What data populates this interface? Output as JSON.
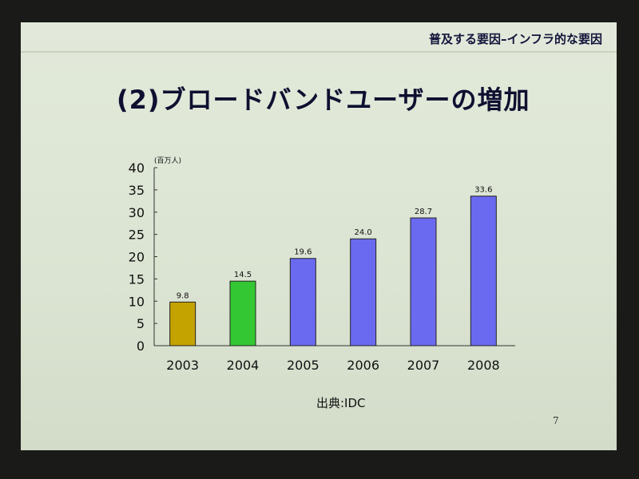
{
  "header": {
    "text": "普及する要因–インフラ的な要因"
  },
  "title": "(2)ブロードバンドユーザーの増加",
  "source": "出典:IDC",
  "page_number": "7",
  "chart_data": {
    "type": "bar",
    "title": "",
    "ylabel": "(百万人)",
    "xlabel": "",
    "categories": [
      "2003",
      "2004",
      "2005",
      "2006",
      "2007",
      "2008"
    ],
    "values": [
      9.8,
      14.5,
      19.6,
      24.0,
      28.7,
      33.6
    ],
    "value_labels": [
      "9.8",
      "14.5",
      "19.6",
      "24.0",
      "28.7",
      "33.6"
    ],
    "bar_colors": [
      "#c4a200",
      "#33c833",
      "#6a6af0",
      "#6a6af0",
      "#6a6af0",
      "#6a6af0"
    ],
    "ylim": [
      0,
      40
    ],
    "yticks": [
      "0",
      "5",
      "10",
      "15",
      "20",
      "25",
      "30",
      "35",
      "40"
    ],
    "grid": false,
    "legend": "none"
  }
}
